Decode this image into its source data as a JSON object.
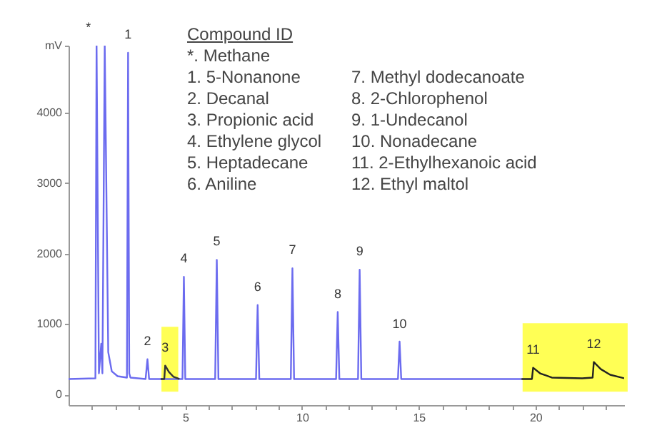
{
  "chart_data": {
    "type": "line",
    "series": [
      {
        "color": "#6b6bef",
        "x": [
          0,
          1.15,
          1.2,
          1.3,
          1.4,
          1.45,
          1.55,
          1.7,
          1.85,
          2.1,
          2.5,
          2.55,
          2.6,
          2.65,
          3.3,
          3.38,
          3.45,
          3.95,
          4.75,
          4.88,
          4.94,
          5.0,
          6.28,
          6.35,
          6.42,
          8.03,
          8.1,
          8.17,
          9.52,
          9.59,
          9.66,
          11.46,
          11.53,
          11.6,
          12.4,
          12.47,
          12.54,
          14.11,
          14.18,
          14.25,
          19.4
        ],
        "values": [
          220,
          230,
          4950,
          300,
          720,
          300,
          4950,
          600,
          330,
          260,
          240,
          4850,
          300,
          240,
          220,
          500,
          220,
          220,
          220,
          220,
          1670,
          220,
          220,
          1910,
          220,
          220,
          1270,
          220,
          220,
          1790,
          220,
          220,
          1170,
          220,
          220,
          1770,
          220,
          220,
          750,
          220,
          220
        ]
      },
      {
        "color": "#333333",
        "x": [
          3.95,
          4.1,
          4.14,
          4.3,
          4.5,
          4.75
        ],
        "values": [
          220,
          220,
          410,
          320,
          250,
          220
        ]
      },
      {
        "color": "#222222",
        "x": [
          19.4,
          19.85,
          19.9,
          20.2,
          20.7,
          22.0,
          22.45,
          22.5,
          22.8,
          23.2,
          23.8
        ],
        "values": [
          220,
          220,
          380,
          300,
          240,
          230,
          240,
          460,
          360,
          280,
          230
        ]
      }
    ],
    "xlim": [
      0,
      23.8
    ],
    "xticks": [
      {
        "value": 1,
        "label": null
      },
      {
        "value": 2,
        "label": null
      },
      {
        "value": 3,
        "label": null
      },
      {
        "value": 4,
        "label": null
      },
      5,
      {
        "value": 6,
        "label": null
      },
      {
        "value": 7,
        "label": null
      },
      {
        "value": 8,
        "label": null
      },
      {
        "value": 9,
        "label": null
      },
      10,
      {
        "value": 11,
        "label": null
      },
      {
        "value": 12,
        "label": null
      },
      {
        "value": 13,
        "label": null
      },
      {
        "value": 14,
        "label": null
      },
      15,
      {
        "value": 16,
        "label": null
      },
      {
        "value": 17,
        "label": null
      },
      {
        "value": 18,
        "label": null
      },
      {
        "value": 19,
        "label": null
      },
      20,
      {
        "value": 21,
        "label": null
      },
      {
        "value": 22,
        "label": null
      },
      {
        "value": 23,
        "label": null
      }
    ],
    "ylim": [
      -150,
      4950
    ],
    "yticks": [
      0,
      1000,
      2000,
      3000,
      4000,
      {
        "value": 4950,
        "label": "mV"
      }
    ],
    "grid": false,
    "bands": [
      {
        "axis": "x",
        "from": 3.98,
        "to": 4.7,
        "color": "#ffff55"
      },
      {
        "axis": "x",
        "from": 19.45,
        "to": 23.95,
        "color": "#ffff55"
      }
    ],
    "annotations": [
      "Compound ID",
      "*.  Methane",
      "1.   5-Nonanone",
      "2.   Decanal",
      "3.   Propionic acid",
      "4.   Ethylene glycol",
      "5.   Heptadecane",
      "6.   Aniline",
      "7.    Methyl dodecanoate",
      "8.     2-Chlorophenol",
      "9.    1-Undecanol",
      "10.  Nonadecane",
      "11.  2-Ethylhexanoic acid",
      "12.  Ethyl maltol",
      {
        "text": "*",
        "x": 0.85,
        "y": 4950
      },
      {
        "text": "1",
        "x": 2.55,
        "y": 4850
      },
      {
        "text": "2",
        "x": 3.38,
        "y": 500
      },
      {
        "text": "3",
        "x": 4.14,
        "y": 410
      },
      {
        "text": "4",
        "x": 4.94,
        "y": 1670
      },
      {
        "text": "5",
        "x": 6.35,
        "y": 1910
      },
      {
        "text": "6",
        "x": 8.1,
        "y": 1270
      },
      {
        "text": "7",
        "x": 9.59,
        "y": 1790
      },
      {
        "text": "8",
        "x": 11.53,
        "y": 1170
      },
      {
        "text": "9",
        "x": 12.47,
        "y": 1770
      },
      {
        "text": "10",
        "x": 14.18,
        "y": 745
      },
      {
        "text": "11",
        "x": 19.9,
        "y": 380
      },
      {
        "text": "12",
        "x": 22.5,
        "y": 460
      }
    ]
  }
}
